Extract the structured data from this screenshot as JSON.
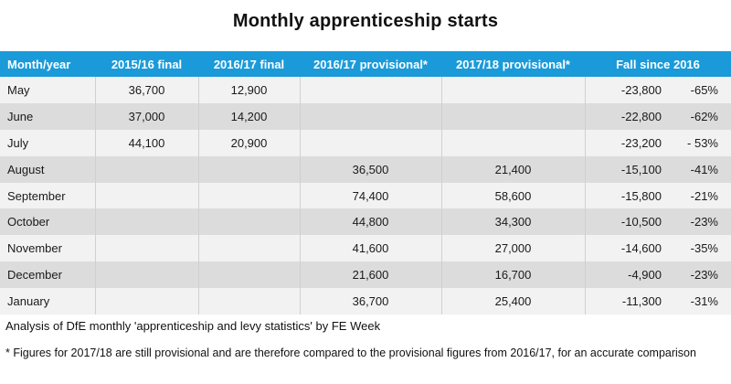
{
  "title": "Monthly apprenticeship starts",
  "headers": [
    "Month/year",
    "2015/16 final",
    "2016/17 final",
    "2016/17 provisional*",
    "2017/18 provisional*",
    "Fall since 2016"
  ],
  "rows": [
    [
      "May",
      "36,700",
      "12,900",
      "",
      "",
      "-23,800",
      "-65%"
    ],
    [
      "June",
      "37,000",
      "14,200",
      "",
      "",
      "-22,800",
      "-62%"
    ],
    [
      "July",
      "44,100",
      "20,900",
      "",
      "",
      "-23,200",
      "- 53%"
    ],
    [
      "August",
      "",
      "",
      "36,500",
      "21,400",
      "-15,100",
      "-41%"
    ],
    [
      "September",
      "",
      "",
      "74,400",
      "58,600",
      "-15,800",
      "-21%"
    ],
    [
      "October",
      "",
      "",
      "44,800",
      "34,300",
      "-10,500",
      "-23%"
    ],
    [
      "November",
      "",
      "",
      "41,600",
      "27,000",
      "-14,600",
      "-35%"
    ],
    [
      "December",
      "",
      "",
      "21,600",
      "16,700",
      "-4,900",
      "-23%"
    ],
    [
      "January",
      "",
      "",
      "36,700",
      "25,400",
      "-11,300",
      "-31%"
    ]
  ],
  "footnote_source": "Analysis of DfE monthly 'apprenticeship and levy statistics' by FE Week",
  "footnote_provisional": "* Figures for 2017/18 are still provisional and are therefore compared to the provisional figures from 2016/17, for an accurate comparison",
  "colors": {
    "header_bg": "#1a9ad9",
    "row_light": "#f2f2f2",
    "row_dark": "#dcdcdc"
  }
}
